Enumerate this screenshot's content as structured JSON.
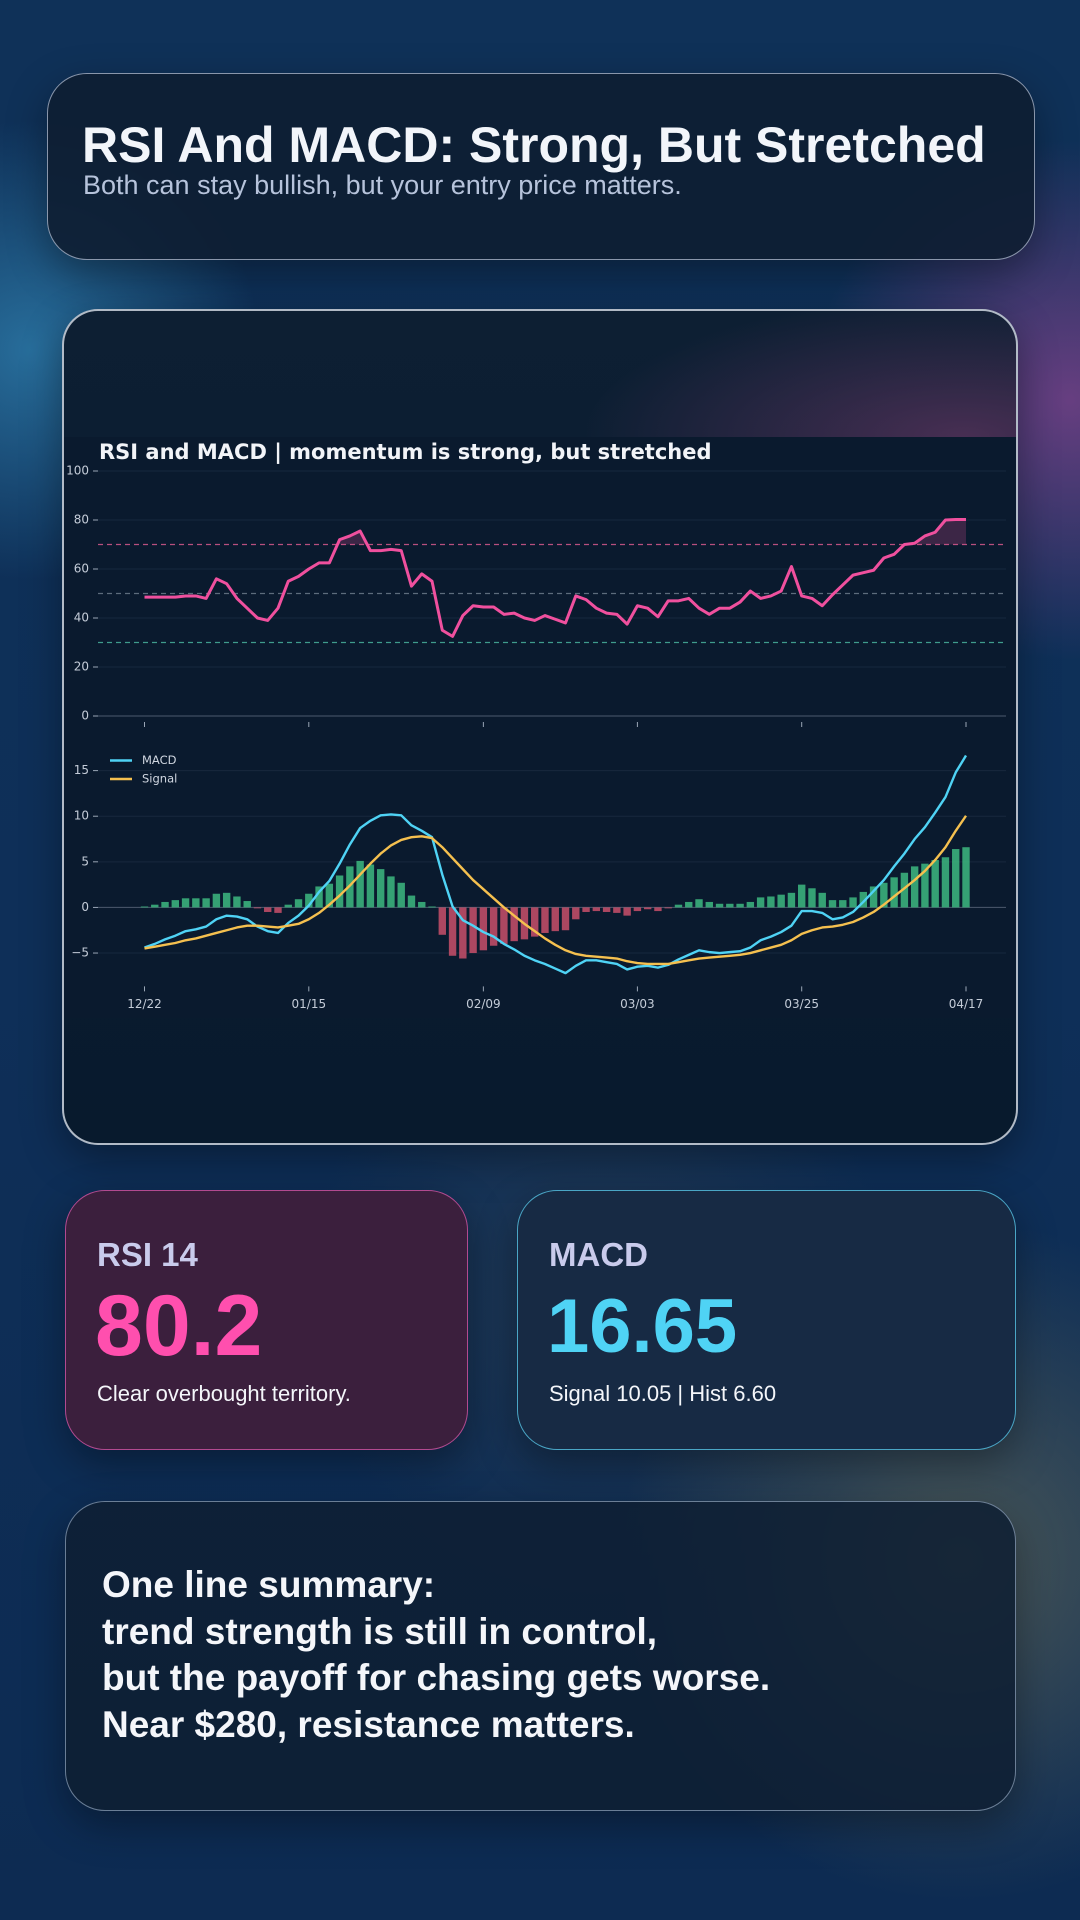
{
  "header": {
    "title": "RSI And MACD: Strong, But Stretched",
    "subtitle": "Both can stay bullish, but your entry price matters."
  },
  "chart_data": [
    {
      "type": "line",
      "title": "RSI and MACD | momentum is strong, but stretched",
      "color": "#f0509e",
      "values": [
        48.5,
        48.5,
        48.5,
        48.5,
        49,
        49,
        48,
        56,
        54,
        48,
        44,
        40,
        39,
        44,
        55,
        57,
        60,
        62.5,
        62.5,
        72,
        73.5,
        75.5,
        67.5,
        67.5,
        68,
        67.5,
        53,
        58,
        55,
        35,
        32.5,
        41,
        45,
        44.5,
        44.5,
        41.5,
        42,
        40,
        39,
        41,
        39.5,
        38,
        49,
        47.5,
        44,
        42,
        41.5,
        37.5,
        45,
        44,
        40.5,
        47,
        47,
        48,
        44,
        41.5,
        44,
        44,
        46.5,
        51,
        48,
        49,
        51,
        61,
        49,
        48,
        45,
        49.5,
        53.5,
        57.5,
        58.5,
        59.5,
        64.5,
        66,
        70,
        70.5,
        73.5,
        75,
        80,
        80.2,
        80.2
      ],
      "ylim": [
        0,
        100
      ],
      "yticks": [
        0,
        20,
        40,
        60,
        80,
        100
      ],
      "grid": true,
      "reference_lines": [
        {
          "value": 70,
          "color": "#b8507e"
        },
        {
          "value": 50,
          "color": "#5d6c7c"
        },
        {
          "value": 30,
          "color": "#3f9c8c"
        }
      ]
    },
    {
      "type": "macd",
      "categories": [
        "12/22",
        null,
        null,
        null,
        null,
        null,
        null,
        null,
        null,
        null,
        null,
        null,
        null,
        null,
        null,
        null,
        "01/15",
        null,
        null,
        null,
        null,
        null,
        null,
        null,
        null,
        null,
        null,
        null,
        null,
        null,
        null,
        null,
        null,
        "02/09",
        null,
        null,
        null,
        null,
        null,
        null,
        null,
        null,
        null,
        null,
        null,
        null,
        null,
        null,
        "03/03",
        null,
        null,
        null,
        null,
        null,
        null,
        null,
        null,
        null,
        null,
        null,
        null,
        null,
        null,
        null,
        "03/25",
        null,
        null,
        null,
        null,
        null,
        null,
        null,
        null,
        null,
        null,
        null,
        null,
        null,
        null,
        null,
        "04/17"
      ],
      "series": [
        {
          "name": "MACD",
          "color": "#4fd3f5",
          "values": [
            -4.4,
            -4.0,
            -3.5,
            -3.1,
            -2.6,
            -2.4,
            -2.1,
            -1.3,
            -0.9,
            -1.0,
            -1.3,
            -2.1,
            -2.6,
            -2.8,
            -1.7,
            -0.9,
            0.2,
            1.7,
            2.9,
            4.8,
            6.9,
            8.7,
            9.5,
            10.1,
            10.2,
            10.1,
            9.0,
            8.4,
            7.7,
            3.6,
            0.1,
            -1.4,
            -2.0,
            -2.7,
            -3.2,
            -4.0,
            -4.6,
            -5.3,
            -5.8,
            -6.2,
            -6.7,
            -7.2,
            -6.4,
            -5.8,
            -5.8,
            -6.0,
            -6.2,
            -6.8,
            -6.5,
            -6.4,
            -6.6,
            -6.3,
            -5.7,
            -5.2,
            -4.7,
            -4.9,
            -5.0,
            -4.9,
            -4.8,
            -4.4,
            -3.6,
            -3.2,
            -2.7,
            -2.0,
            -0.4,
            -0.4,
            -0.6,
            -1.3,
            -1.1,
            -0.5,
            0.6,
            1.8,
            3.0,
            4.5,
            5.9,
            7.5,
            8.8,
            10.4,
            12.1,
            14.8,
            16.65
          ]
        },
        {
          "name": "Signal",
          "color": "#f5c04f",
          "values": [
            -4.5,
            -4.3,
            -4.1,
            -3.9,
            -3.6,
            -3.4,
            -3.1,
            -2.8,
            -2.5,
            -2.2,
            -2.0,
            -2.0,
            -2.1,
            -2.2,
            -2.0,
            -1.8,
            -1.3,
            -0.6,
            0.3,
            1.3,
            2.4,
            3.6,
            4.8,
            5.9,
            6.8,
            7.4,
            7.7,
            7.8,
            7.6,
            6.6,
            5.4,
            4.2,
            3.0,
            2.0,
            1.0,
            0.0,
            -0.9,
            -1.8,
            -2.6,
            -3.4,
            -4.1,
            -4.7,
            -5.1,
            -5.3,
            -5.4,
            -5.5,
            -5.6,
            -5.9,
            -6.1,
            -6.2,
            -6.2,
            -6.2,
            -6.0,
            -5.8,
            -5.6,
            -5.5,
            -5.4,
            -5.3,
            -5.2,
            -5.0,
            -4.7,
            -4.4,
            -4.1,
            -3.6,
            -2.9,
            -2.5,
            -2.2,
            -2.1,
            -1.9,
            -1.6,
            -1.1,
            -0.5,
            0.3,
            1.2,
            2.1,
            3.0,
            4.0,
            5.2,
            6.6,
            8.4,
            10.05
          ]
        }
      ],
      "histogram": {
        "positive_color": "#3dba80",
        "negative_color": "#c9506a",
        "values": [
          0.1,
          0.3,
          0.6,
          0.8,
          1.0,
          1.0,
          1.0,
          1.5,
          1.6,
          1.2,
          0.7,
          -0.1,
          -0.5,
          -0.6,
          0.3,
          0.9,
          1.5,
          2.3,
          2.6,
          3.5,
          4.5,
          5.1,
          4.7,
          4.2,
          3.4,
          2.7,
          1.3,
          0.6,
          0.1,
          -3.0,
          -5.3,
          -5.6,
          -5.0,
          -4.7,
          -4.2,
          -4.0,
          -3.7,
          -3.5,
          -3.2,
          -2.8,
          -2.6,
          -2.5,
          -1.3,
          -0.5,
          -0.4,
          -0.5,
          -0.6,
          -0.9,
          -0.4,
          -0.2,
          -0.4,
          -0.1,
          0.3,
          0.6,
          0.9,
          0.6,
          0.4,
          0.4,
          0.4,
          0.6,
          1.1,
          1.2,
          1.4,
          1.6,
          2.5,
          2.1,
          1.6,
          0.8,
          0.8,
          1.1,
          1.7,
          2.3,
          2.7,
          3.3,
          3.8,
          4.5,
          4.8,
          5.2,
          5.5,
          6.4,
          6.6
        ]
      },
      "ylim": [
        -8,
        18.3
      ],
      "yticks": [
        {
          "value": -5,
          "label": "−5"
        },
        0,
        5,
        10,
        15
      ],
      "grid": true,
      "legend": "upper left"
    }
  ],
  "cards": [
    {
      "label": "RSI 14",
      "value": 80.2,
      "note": "Clear overbought territory."
    },
    {
      "label": "MACD",
      "value": 16.65,
      "note": "Signal 10.05 | Hist 6.60"
    }
  ],
  "summary": {
    "lines": [
      "One line summary:",
      "trend strength is still in control,",
      "but the payoff for chasing gets worse.",
      "Near $280, resistance matters."
    ]
  }
}
